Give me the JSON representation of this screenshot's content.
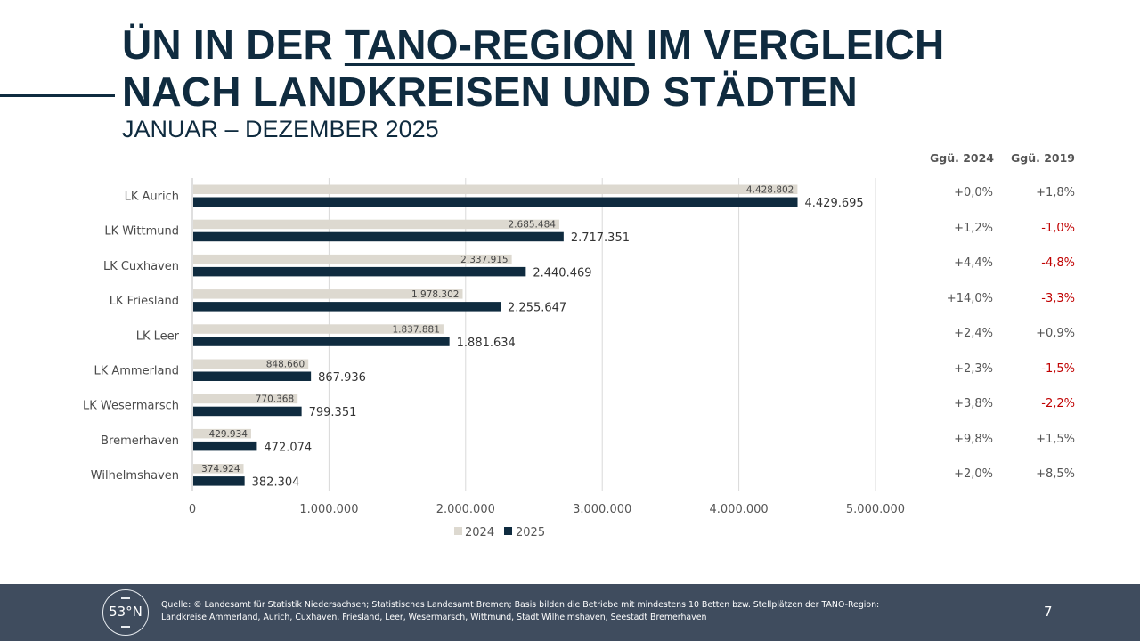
{
  "header": {
    "title_line1_prefix": "ÜN IN DER ",
    "title_line1_underlined": "TANO-REGION",
    "title_line1_suffix": " IM VERGLEICH",
    "title_line2": "NACH LANDKREISEN UND STÄDTEN",
    "subtitle": "JANUAR – DEZEMBER 2025"
  },
  "table": {
    "headers": [
      "Ggü. 2024",
      "Ggü. 2019"
    ],
    "rows": [
      {
        "vs2024": "+0,0%",
        "vs2019": "+1,8%",
        "vs2019_negative": false
      },
      {
        "vs2024": "+1,2%",
        "vs2019": "-1,0%",
        "vs2019_negative": true
      },
      {
        "vs2024": "+4,4%",
        "vs2019": "-4,8%",
        "vs2019_negative": true
      },
      {
        "vs2024": "+14,0%",
        "vs2019": "-3,3%",
        "vs2019_negative": true
      },
      {
        "vs2024": "+2,4%",
        "vs2019": "+0,9%",
        "vs2019_negative": false
      },
      {
        "vs2024": "+2,3%",
        "vs2019": "-1,5%",
        "vs2019_negative": true
      },
      {
        "vs2024": "+3,8%",
        "vs2019": "-2,2%",
        "vs2019_negative": true
      },
      {
        "vs2024": "+9,8%",
        "vs2019": "+1,5%",
        "vs2019_negative": false
      },
      {
        "vs2024": "+2,0%",
        "vs2019": "+8,5%",
        "vs2019_negative": false
      }
    ]
  },
  "chart_data": {
    "type": "bar",
    "orientation": "horizontal",
    "title": "ÜN in der TANO-Region im Vergleich nach Landkreisen und Städten",
    "subtitle": "Januar – Dezember 2025",
    "categories": [
      "LK Aurich",
      "LK Wittmund",
      "LK Cuxhaven",
      "LK Friesland",
      "LK Leer",
      "LK Ammerland",
      "LK Wesermarsch",
      "Bremerhaven",
      "Wilhelmshaven"
    ],
    "series": [
      {
        "name": "2024",
        "color": "#ddd9d0",
        "values": [
          4428802,
          2685484,
          2337915,
          1978302,
          1837881,
          848660,
          770368,
          429934,
          374924
        ],
        "labels": [
          "4.428.802",
          "2.685.484",
          "2.337.915",
          "1.978.302",
          "1.837.881",
          "848.660",
          "770.368",
          "429.934",
          "374.924"
        ]
      },
      {
        "name": "2025",
        "color": "#0f2b3f",
        "values": [
          4429695,
          2717351,
          2440469,
          2255647,
          1881634,
          867936,
          799351,
          472074,
          382304
        ],
        "labels": [
          "4.429.695",
          "2.717.351",
          "2.440.469",
          "2.255.647",
          "1.881.634",
          "867.936",
          "799.351",
          "472.074",
          "382.304"
        ]
      }
    ],
    "xlim": [
      0,
      5000000
    ],
    "xticks": [
      0,
      1000000,
      2000000,
      3000000,
      4000000,
      5000000
    ],
    "xtick_labels": [
      "0",
      "1.000.000",
      "2.000.000",
      "3.000.000",
      "4.000.000",
      "5.000.000"
    ],
    "xlabel": "",
    "ylabel": "",
    "grid": "vertical",
    "legend": {
      "position": "bottom",
      "entries": [
        "2024",
        "2025"
      ]
    }
  },
  "footer": {
    "logo_text": "53°N",
    "source_line1": "Quelle: © Landesamt für Statistik Niedersachsen; Statistisches Landesamt Bremen; Basis bilden die Betriebe mit mindestens 10 Betten bzw. Stellplätzen der TANO-Region:",
    "source_line2": "Landkreise Ammerland, Aurich, Cuxhaven, Friesland, Leer, Wesermarsch, Wittmund, Stadt Wilhelmshaven, Seestadt Bremerhaven",
    "page_number": "7"
  }
}
